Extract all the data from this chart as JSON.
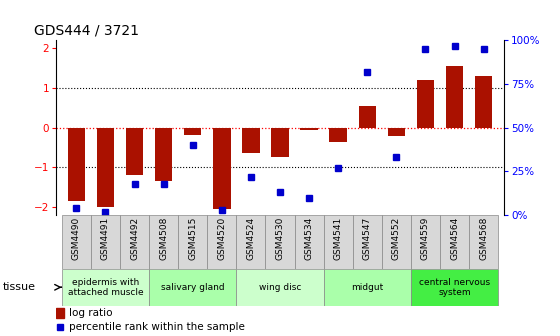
{
  "title": "GDS444 / 3721",
  "samples": [
    "GSM4490",
    "GSM4491",
    "GSM4492",
    "GSM4508",
    "GSM4515",
    "GSM4520",
    "GSM4524",
    "GSM4530",
    "GSM4534",
    "GSM4541",
    "GSM4547",
    "GSM4552",
    "GSM4559",
    "GSM4564",
    "GSM4568"
  ],
  "log_ratio": [
    -1.85,
    -2.0,
    -1.2,
    -1.35,
    -0.18,
    -2.05,
    -0.65,
    -0.75,
    -0.05,
    -0.35,
    0.55,
    -0.22,
    1.2,
    1.55,
    1.3
  ],
  "percentile": [
    4,
    2,
    18,
    18,
    40,
    3,
    22,
    13,
    10,
    27,
    82,
    33,
    95,
    97,
    95
  ],
  "tissue_groups": [
    {
      "label": "epidermis with\nattached muscle",
      "start": 0,
      "end": 3,
      "color": "#ccffcc"
    },
    {
      "label": "salivary gland",
      "start": 3,
      "end": 6,
      "color": "#aaffaa"
    },
    {
      "label": "wing disc",
      "start": 6,
      "end": 9,
      "color": "#ccffcc"
    },
    {
      "label": "midgut",
      "start": 9,
      "end": 12,
      "color": "#aaffaa"
    },
    {
      "label": "central nervous\nsystem",
      "start": 12,
      "end": 15,
      "color": "#44ee44"
    }
  ],
  "ylim_left": [
    -2.2,
    2.2
  ],
  "ylim_right": [
    0,
    100
  ],
  "yticks_left": [
    -2,
    -1,
    0,
    1,
    2
  ],
  "yticks_right": [
    0,
    25,
    50,
    75,
    100
  ],
  "bar_color": "#aa1100",
  "dot_color": "#0000cc",
  "sample_bg": "#d8d8d8",
  "border_color": "#888888"
}
